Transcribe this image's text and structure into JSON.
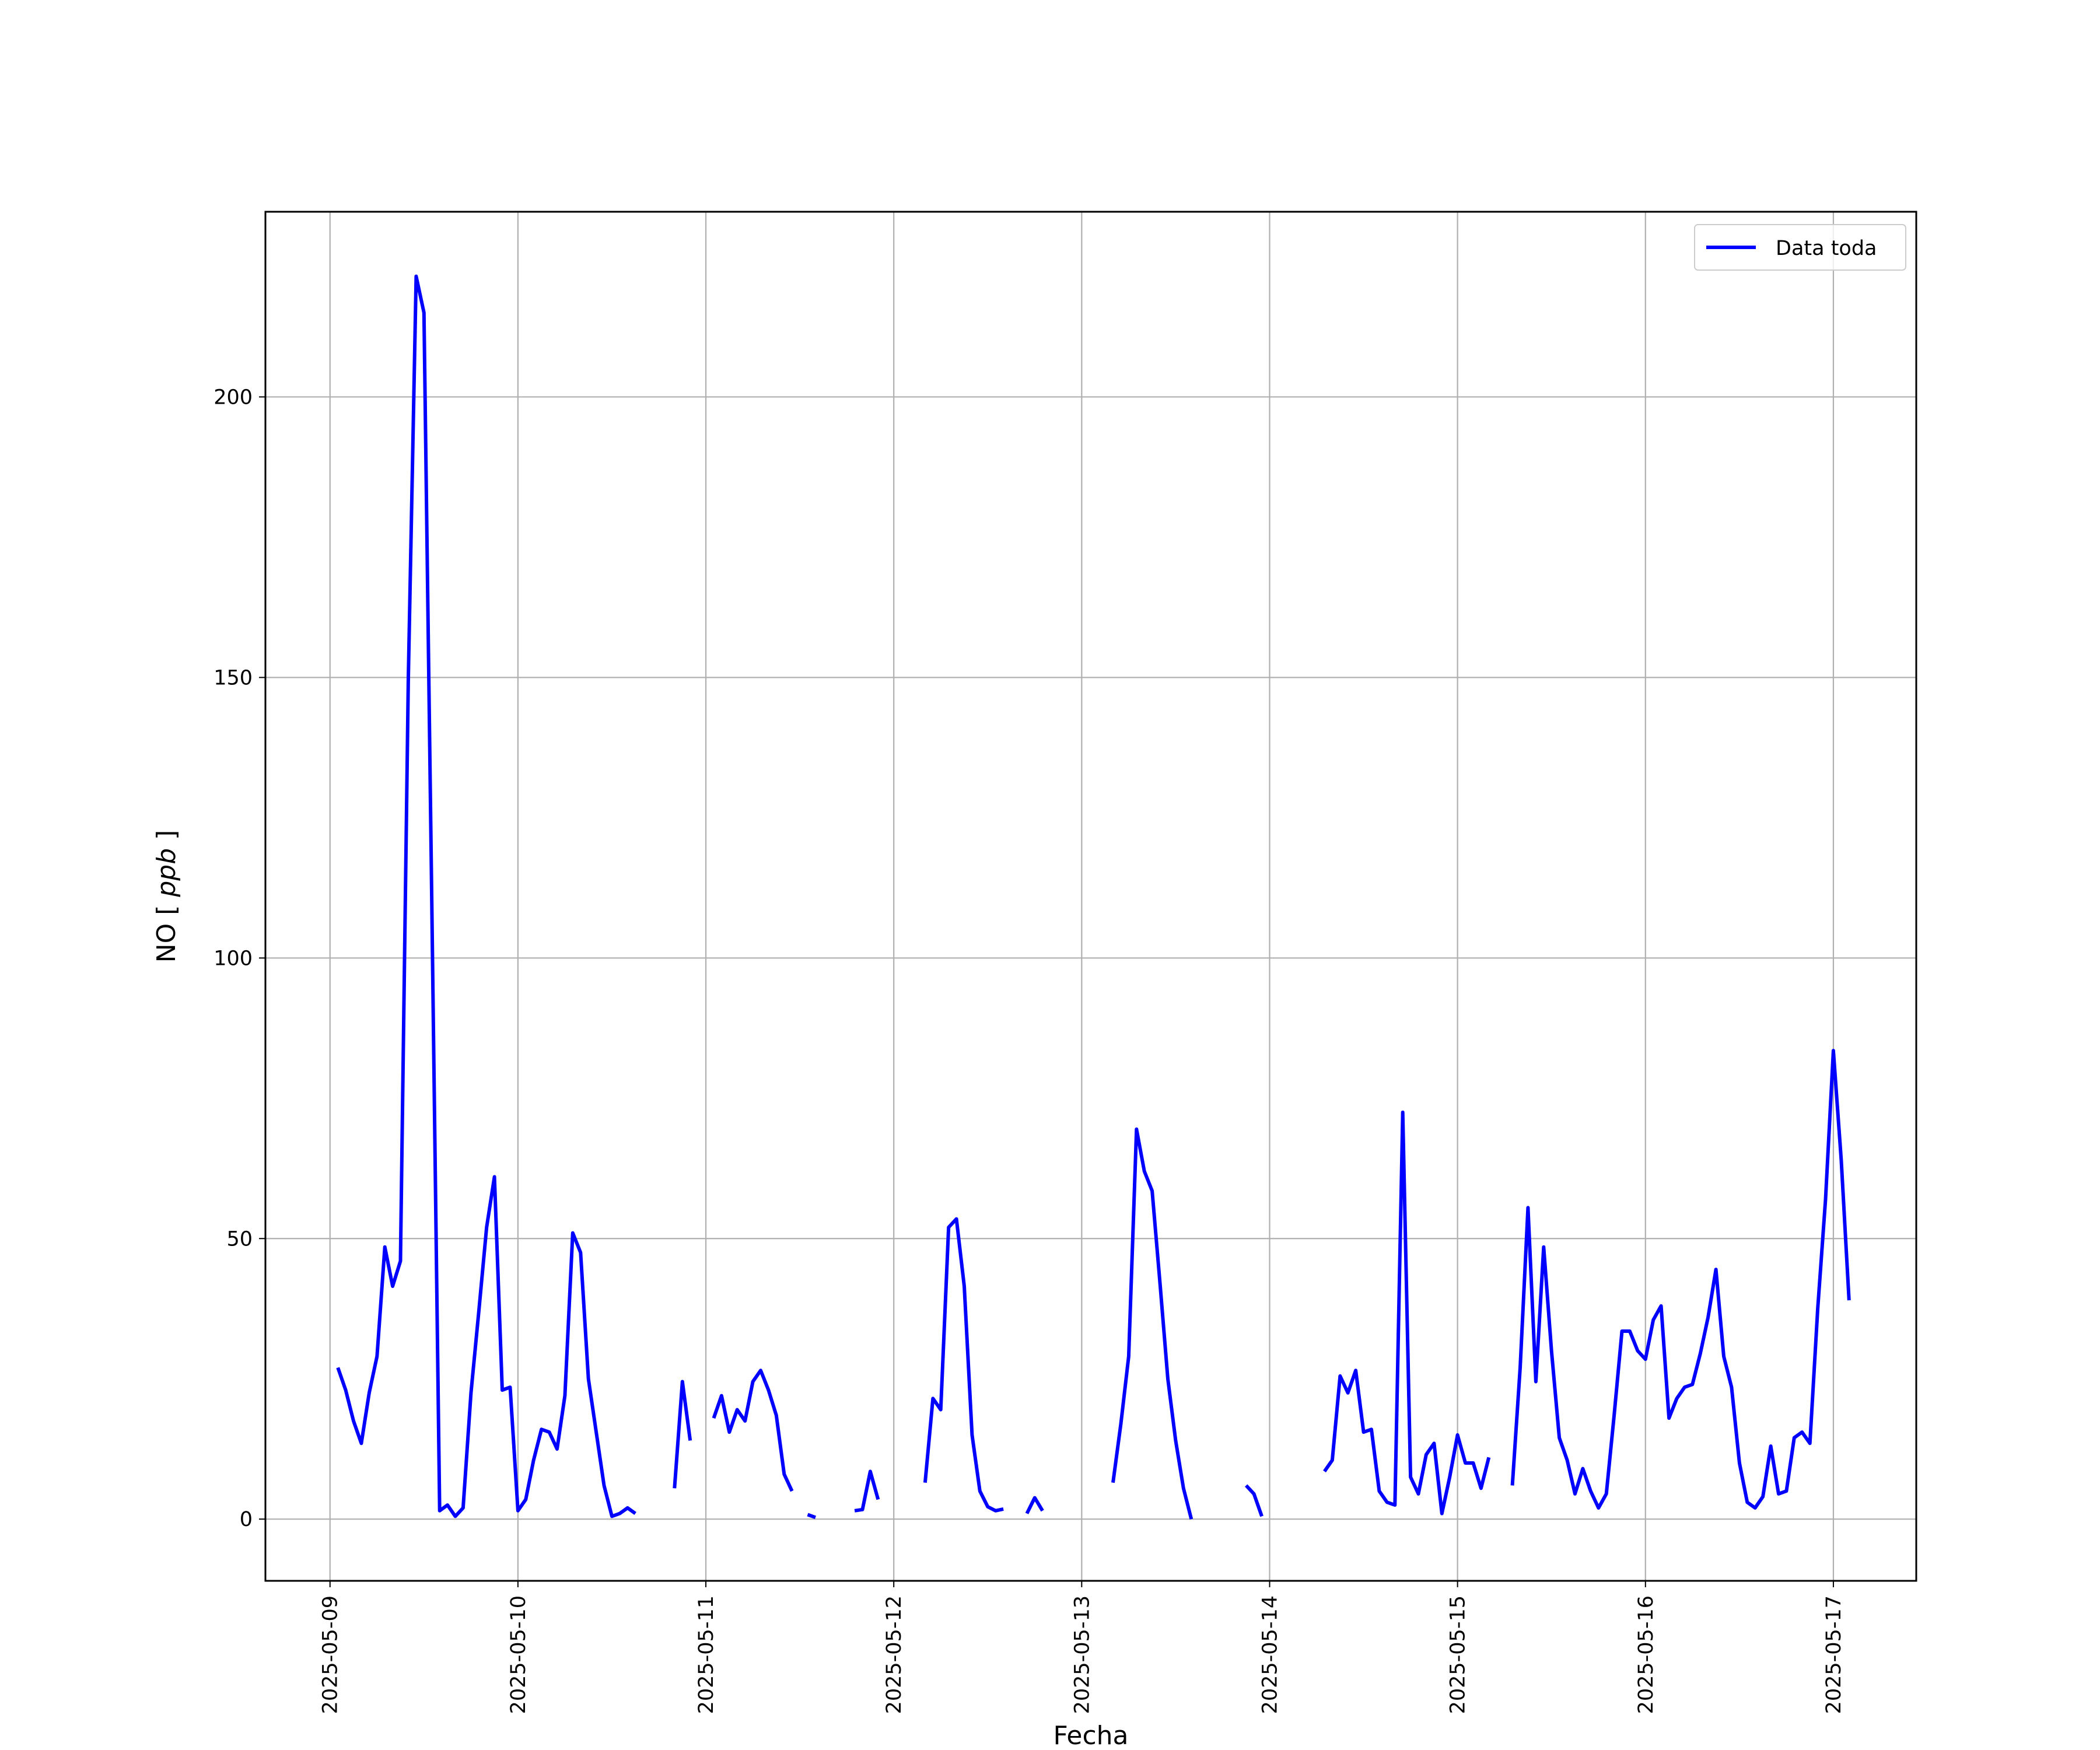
{
  "chart_data": {
    "type": "line",
    "title": "",
    "xlabel": "Fecha",
    "ylabel": "NO [ppb]",
    "ylabel_parts": {
      "name": "NO",
      "unit": "ppb"
    },
    "x_ticks": [
      "2025-05-09",
      "2025-05-10",
      "2025-05-11",
      "2025-05-12",
      "2025-05-13",
      "2025-05-14",
      "2025-05-15",
      "2025-05-16",
      "2025-05-17"
    ],
    "y_ticks": [
      0,
      50,
      100,
      150,
      200
    ],
    "xlim": [
      "2025-05-08T15:45",
      "2025-05-17T10:35"
    ],
    "ylim": [
      -11,
      233
    ],
    "grid": true,
    "legend": {
      "position": "top-right"
    },
    "series": [
      {
        "name": "Data toda",
        "color": "#0000ff",
        "segments": [
          [
            [
              "2025-05-09T01:00",
              27
            ],
            [
              "2025-05-09T02:00",
              23
            ],
            [
              "2025-05-09T03:00",
              17.5
            ],
            [
              "2025-05-09T04:00",
              13.5
            ],
            [
              "2025-05-09T05:00",
              22.5
            ],
            [
              "2025-05-09T06:00",
              29
            ],
            [
              "2025-05-09T07:00",
              48.5
            ],
            [
              "2025-05-09T08:00",
              41.5
            ],
            [
              "2025-05-09T09:00",
              46
            ],
            [
              "2025-05-09T10:00",
              150
            ],
            [
              "2025-05-09T11:00",
              221.5
            ],
            [
              "2025-05-09T12:00",
              215
            ],
            [
              "2025-05-09T13:00",
              110
            ],
            [
              "2025-05-09T14:00",
              1.5
            ],
            [
              "2025-05-09T15:00",
              2.5
            ],
            [
              "2025-05-09T16:00",
              0.5
            ],
            [
              "2025-05-09T17:00",
              2
            ],
            [
              "2025-05-09T18:00",
              22.5
            ],
            [
              "2025-05-09T19:00",
              37
            ],
            [
              "2025-05-09T20:00",
              52
            ],
            [
              "2025-05-09T21:00",
              61
            ],
            [
              "2025-05-09T22:00",
              23
            ],
            [
              "2025-05-09T23:00",
              23.5
            ],
            [
              "2025-05-10T00:00",
              1.5
            ],
            [
              "2025-05-10T01:00",
              3.5
            ],
            [
              "2025-05-10T02:00",
              10.5
            ],
            [
              "2025-05-10T03:00",
              16
            ],
            [
              "2025-05-10T04:00",
              15.5
            ],
            [
              "2025-05-10T05:00",
              12.5
            ],
            [
              "2025-05-10T06:00",
              22
            ],
            [
              "2025-05-10T07:00",
              51
            ],
            [
              "2025-05-10T08:00",
              47.5
            ],
            [
              "2025-05-10T09:00",
              25
            ],
            [
              "2025-05-10T10:00",
              15.5
            ],
            [
              "2025-05-10T11:00",
              6
            ],
            [
              "2025-05-10T12:00",
              0.5
            ],
            [
              "2025-05-10T13:00",
              1
            ],
            [
              "2025-05-10T14:00",
              2
            ],
            [
              "2025-05-10T15:00",
              1
            ]
          ],
          [
            [
              "2025-05-10T20:00",
              5.5
            ],
            [
              "2025-05-10T21:00",
              24.5
            ],
            [
              "2025-05-10T22:00",
              14
            ]
          ],
          [
            [
              "2025-05-11T01:00",
              18
            ],
            [
              "2025-05-11T02:00",
              22
            ],
            [
              "2025-05-11T03:00",
              15.5
            ],
            [
              "2025-05-11T04:00",
              19.5
            ],
            [
              "2025-05-11T05:00",
              17.5
            ],
            [
              "2025-05-11T06:00",
              24.5
            ],
            [
              "2025-05-11T07:00",
              26.5
            ],
            [
              "2025-05-11T08:00",
              23
            ],
            [
              "2025-05-11T09:00",
              18.5
            ],
            [
              "2025-05-11T10:00",
              8
            ],
            [
              "2025-05-11T11:00",
              5
            ]
          ],
          [
            [
              "2025-05-11T13:00",
              0.8
            ],
            [
              "2025-05-11T14:00",
              0.3
            ]
          ],
          [
            [
              "2025-05-11T19:00",
              1.5
            ],
            [
              "2025-05-11T20:00",
              1.7
            ],
            [
              "2025-05-11T21:00",
              8.5
            ],
            [
              "2025-05-11T22:00",
              3.5
            ]
          ],
          [
            [
              "2025-05-12T04:00",
              6.5
            ],
            [
              "2025-05-12T05:00",
              21.5
            ],
            [
              "2025-05-12T06:00",
              19.5
            ],
            [
              "2025-05-12T07:00",
              52
            ],
            [
              "2025-05-12T08:00",
              53.5
            ],
            [
              "2025-05-12T09:00",
              41.5
            ],
            [
              "2025-05-12T10:00",
              15
            ],
            [
              "2025-05-12T11:00",
              5
            ],
            [
              "2025-05-12T12:00",
              2.2
            ],
            [
              "2025-05-12T13:00",
              1.5
            ],
            [
              "2025-05-12T14:00",
              1.8
            ]
          ],
          [
            [
              "2025-05-12T17:00",
              1
            ],
            [
              "2025-05-12T18:00",
              3.8
            ],
            [
              "2025-05-12T19:00",
              1.5
            ]
          ],
          [
            [
              "2025-05-13T04:00",
              6.5
            ],
            [
              "2025-05-13T05:00",
              17
            ],
            [
              "2025-05-13T06:00",
              29
            ],
            [
              "2025-05-13T07:00",
              69.5
            ],
            [
              "2025-05-13T08:00",
              62
            ],
            [
              "2025-05-13T09:00",
              58.5
            ],
            [
              "2025-05-13T10:00",
              42
            ],
            [
              "2025-05-13T11:00",
              25
            ],
            [
              "2025-05-13T12:00",
              14
            ],
            [
              "2025-05-13T13:00",
              5.5
            ],
            [
              "2025-05-13T14:00",
              0
            ]
          ],
          [
            [
              "2025-05-13T21:00",
              6
            ],
            [
              "2025-05-13T22:00",
              4.5
            ],
            [
              "2025-05-13T23:00",
              0.5
            ]
          ],
          [
            [
              "2025-05-14T07:00",
              8.5
            ],
            [
              "2025-05-14T08:00",
              10.5
            ],
            [
              "2025-05-14T09:00",
              25.5
            ],
            [
              "2025-05-14T10:00",
              22.5
            ],
            [
              "2025-05-14T11:00",
              26.5
            ],
            [
              "2025-05-14T12:00",
              15.5
            ],
            [
              "2025-05-14T13:00",
              16
            ],
            [
              "2025-05-14T14:00",
              5
            ],
            [
              "2025-05-14T15:00",
              3
            ],
            [
              "2025-05-14T16:00",
              2.5
            ],
            [
              "2025-05-14T17:00",
              72.5
            ],
            [
              "2025-05-14T18:00",
              7.5
            ],
            [
              "2025-05-14T19:00",
              4.5
            ],
            [
              "2025-05-14T20:00",
              11.5
            ],
            [
              "2025-05-14T21:00",
              13.5
            ],
            [
              "2025-05-14T22:00",
              1
            ],
            [
              "2025-05-14T23:00",
              7.5
            ],
            [
              "2025-05-15T00:00",
              15
            ],
            [
              "2025-05-15T01:00",
              10
            ],
            [
              "2025-05-15T02:00",
              10
            ],
            [
              "2025-05-15T03:00",
              5.5
            ],
            [
              "2025-05-15T04:00",
              11
            ]
          ],
          [
            [
              "2025-05-15T07:00",
              6
            ],
            [
              "2025-05-15T08:00",
              27
            ],
            [
              "2025-05-15T09:00",
              55.5
            ],
            [
              "2025-05-15T10:00",
              24.5
            ],
            [
              "2025-05-15T11:00",
              48.5
            ],
            [
              "2025-05-15T12:00",
              30
            ],
            [
              "2025-05-15T13:00",
              14.5
            ],
            [
              "2025-05-15T14:00",
              10.5
            ],
            [
              "2025-05-15T15:00",
              4.5
            ],
            [
              "2025-05-15T16:00",
              9
            ],
            [
              "2025-05-15T17:00",
              5
            ],
            [
              "2025-05-15T18:00",
              2
            ],
            [
              "2025-05-15T19:00",
              4.5
            ],
            [
              "2025-05-15T20:00",
              18.5
            ],
            [
              "2025-05-15T21:00",
              33.5
            ],
            [
              "2025-05-15T22:00",
              33.5
            ],
            [
              "2025-05-15T23:00",
              30
            ],
            [
              "2025-05-16T00:00",
              28.5
            ],
            [
              "2025-05-16T01:00",
              35.5
            ],
            [
              "2025-05-16T02:00",
              38
            ],
            [
              "2025-05-16T03:00",
              18
            ],
            [
              "2025-05-16T04:00",
              21.5
            ],
            [
              "2025-05-16T05:00",
              23.5
            ],
            [
              "2025-05-16T06:00",
              24
            ],
            [
              "2025-05-16T07:00",
              29.5
            ],
            [
              "2025-05-16T08:00",
              36
            ],
            [
              "2025-05-16T09:00",
              44.5
            ],
            [
              "2025-05-16T10:00",
              29
            ],
            [
              "2025-05-16T11:00",
              23.5
            ],
            [
              "2025-05-16T12:00",
              10
            ],
            [
              "2025-05-16T13:00",
              3
            ],
            [
              "2025-05-16T14:00",
              2
            ],
            [
              "2025-05-16T15:00",
              4
            ],
            [
              "2025-05-16T16:00",
              13
            ],
            [
              "2025-05-16T17:00",
              4.5
            ],
            [
              "2025-05-16T18:00",
              5
            ],
            [
              "2025-05-16T19:00",
              14.5
            ],
            [
              "2025-05-16T20:00",
              15.5
            ],
            [
              "2025-05-16T21:00",
              13.5
            ],
            [
              "2025-05-16T22:00",
              37.5
            ],
            [
              "2025-05-16T23:00",
              57
            ],
            [
              "2025-05-17T00:00",
              83.5
            ],
            [
              "2025-05-17T01:00",
              64
            ],
            [
              "2025-05-17T02:00",
              39
            ]
          ]
        ]
      }
    ]
  }
}
